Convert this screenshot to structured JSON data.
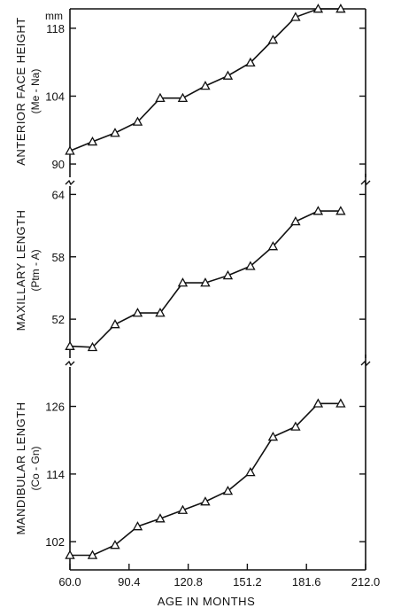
{
  "chart_data": {
    "type": "line",
    "x_axis": {
      "label": "AGE IN MONTHS",
      "ticks": [
        60.0,
        90.4,
        120.8,
        151.2,
        181.6,
        212.0
      ],
      "tick_labels": [
        "60.0",
        "90.4",
        "120.8",
        "151.2",
        "181.6",
        "212.0"
      ],
      "range": [
        60.0,
        212.0
      ]
    },
    "x": [
      60.0,
      75.2,
      90.4,
      105.6,
      120.8,
      136.0,
      151.2,
      166.4,
      181.6,
      196.8,
      212.0
    ],
    "x_points": [
      60,
      71.6,
      83.2,
      94.8,
      106.4,
      118,
      129.6,
      141.2,
      152.8,
      164.4,
      176,
      187.6,
      199.2
    ],
    "panels": [
      {
        "id": "anterior-face-height",
        "ylabel": "ANTERIOR FACE HEIGHT",
        "ysublabel": "(Me - Na)",
        "unit": "mm",
        "yticks": [
          90,
          104,
          118
        ],
        "ylim": [
          88,
          122
        ],
        "values": [
          92.7,
          94.6,
          96.4,
          98.7,
          103.6,
          103.6,
          106.1,
          108.2,
          110.9,
          115.6,
          120.3,
          122.0,
          122.0
        ]
      },
      {
        "id": "maxillary-length",
        "ylabel": "MAXILLARY LENGTH",
        "ysublabel": "(Ptm - A)",
        "unit": "",
        "yticks": [
          52,
          58,
          64
        ],
        "ylim": [
          48.6,
          64.8
        ],
        "values": [
          49.4,
          49.3,
          51.5,
          52.6,
          52.6,
          55.5,
          55.5,
          56.2,
          57.1,
          59.0,
          61.4,
          62.4,
          62.4
        ]
      },
      {
        "id": "mandibular-length",
        "ylabel": "MANDIBULAR LENGTH",
        "ysublabel": "(Co - Gn)",
        "unit": "",
        "yticks": [
          102,
          114,
          126
        ],
        "ylim": [
          97,
          133
        ],
        "values": [
          99.6,
          99.6,
          101.4,
          104.7,
          106.1,
          107.6,
          109.1,
          111.0,
          114.3,
          120.6,
          122.4,
          126.5,
          126.5
        ]
      }
    ],
    "grid": false,
    "legend": "none"
  }
}
